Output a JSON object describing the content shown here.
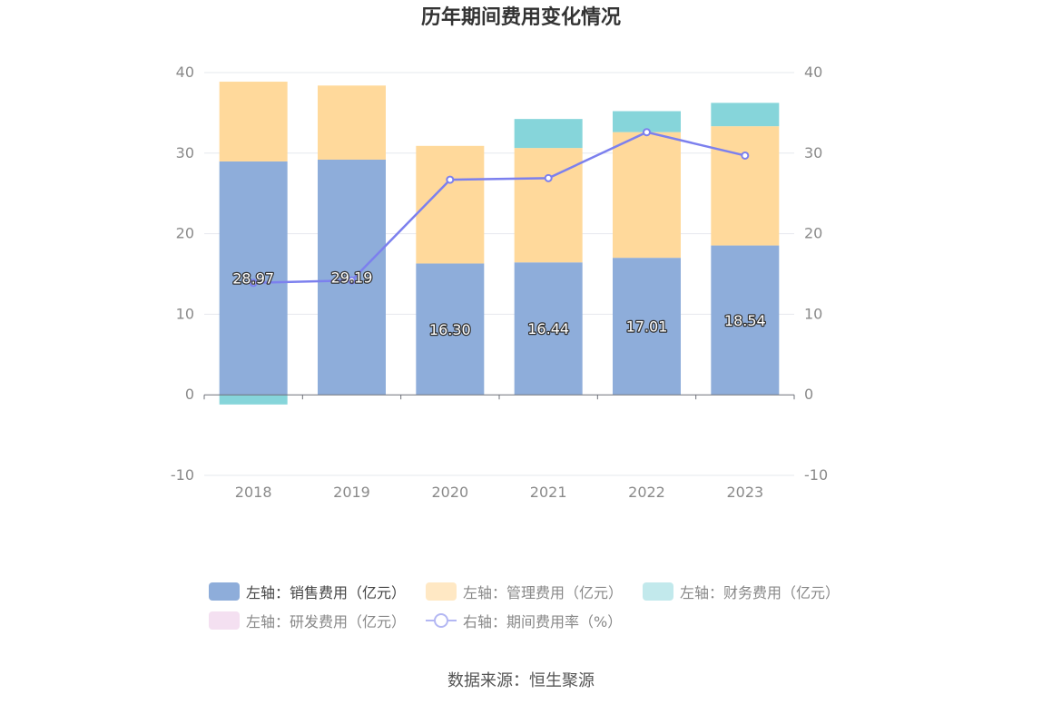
{
  "chart_data": {
    "type": "bar",
    "title": "历年期间费用变化情况",
    "categories": [
      "2018",
      "2019",
      "2020",
      "2021",
      "2022",
      "2023"
    ],
    "left_axis": {
      "ylim": [
        -10,
        40
      ],
      "ticks": [
        "-10",
        "0",
        "10",
        "20",
        "30",
        "40"
      ]
    },
    "right_axis": {
      "ylim": [
        -10,
        40
      ],
      "ticks": [
        "-10",
        "0",
        "10",
        "20",
        "30",
        "40"
      ]
    },
    "series": [
      {
        "name": "左轴：销售费用（亿元）",
        "type": "bar",
        "stack": true,
        "color": "#8eadda",
        "values": [
          28.97,
          29.19,
          16.3,
          16.44,
          17.01,
          18.54
        ],
        "labels": [
          "28.97",
          "29.19",
          "16.30",
          "16.44",
          "17.01",
          "18.54"
        ]
      },
      {
        "name": "左轴：管理费用（亿元）",
        "type": "bar",
        "stack": true,
        "color": "#ffd99b",
        "values": [
          9.9,
          9.2,
          14.6,
          14.2,
          15.6,
          14.8
        ]
      },
      {
        "name": "左轴：财务费用（亿元）",
        "type": "bar",
        "stack": true,
        "color": "#86d5da",
        "values": [
          -1.2,
          0,
          0,
          3.6,
          2.6,
          2.9
        ]
      },
      {
        "name": "左轴：研发费用（亿元）",
        "type": "bar",
        "stack": true,
        "color": "#f0d3ec",
        "values": [
          0,
          0,
          0,
          0,
          0,
          0
        ]
      },
      {
        "name": "右轴：期间费用率（%）",
        "type": "line",
        "axis": "right",
        "color": "#7c80ee",
        "values": [
          13.9,
          14.2,
          26.7,
          26.9,
          32.6,
          29.7
        ]
      }
    ],
    "legend_position": "bottom",
    "grid": true
  },
  "legend": {
    "row1": [
      "左轴：销售费用（亿元）",
      "左轴：管理费用（亿元）",
      "左轴：财务费用（亿元）"
    ],
    "row2": [
      "左轴：研发费用（亿元）",
      "右轴：期间费用率（%）"
    ]
  },
  "source": "数据来源：恒生聚源"
}
